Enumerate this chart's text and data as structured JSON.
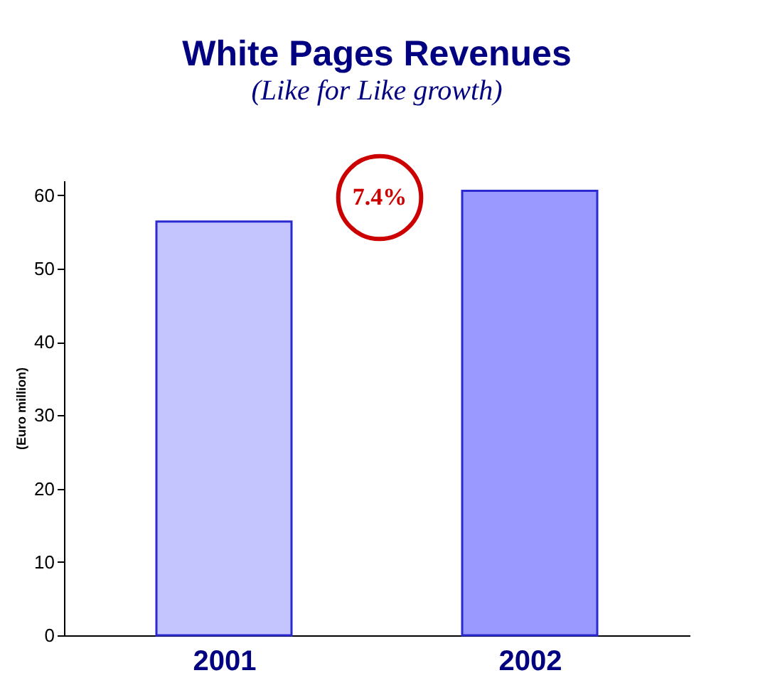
{
  "chart_data": {
    "type": "bar",
    "title": "White Pages Revenues",
    "subtitle": "(Like for Like growth)",
    "ylabel": "(Euro million)",
    "categories": [
      "2001",
      "2002"
    ],
    "values": [
      56.4,
      60.6
    ],
    "colors": [
      "#c4c4ff",
      "#9999ff"
    ],
    "ylim": [
      0,
      62
    ],
    "yticks": [
      0,
      10,
      20,
      30,
      40,
      50,
      60
    ],
    "grid": false,
    "annotations": [
      "7.4%"
    ]
  }
}
